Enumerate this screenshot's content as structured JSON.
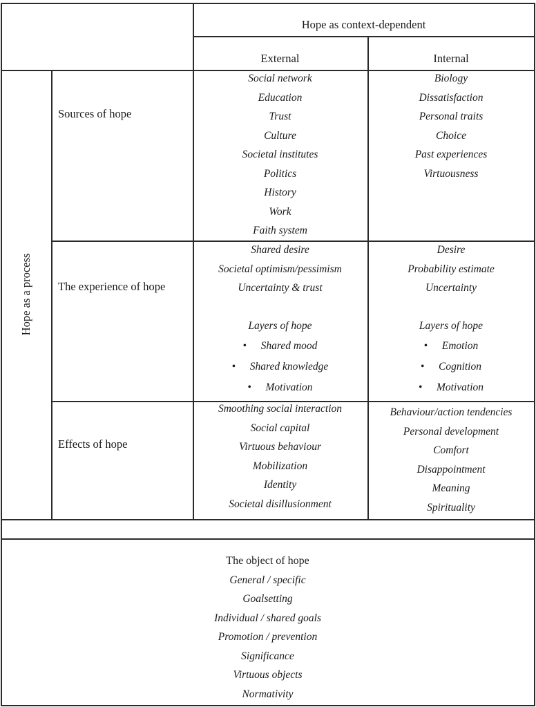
{
  "header": {
    "group_title": "Hope as context-dependent",
    "col_external": "External",
    "col_internal": "Internal",
    "row_group_title": "Hope as a process"
  },
  "rows": {
    "sources": {
      "label": "Sources of hope",
      "external": [
        "Social network",
        "Education",
        "Trust",
        "Culture",
        "Societal institutes",
        "Politics",
        "History",
        "Work",
        "Faith system"
      ],
      "internal": [
        "Biology",
        "Dissatisfaction",
        "Personal traits",
        "Choice",
        "Past experiences",
        "Virtuousness"
      ]
    },
    "experience": {
      "label": "The experience of hope",
      "external": [
        "Shared desire",
        "Societal optimism/pessimism",
        "Uncertainty & trust"
      ],
      "external_layers_title": "Layers of hope",
      "external_layers": [
        "Shared mood",
        "Shared knowledge",
        "Motivation"
      ],
      "internal": [
        "Desire",
        "Probability estimate",
        "Uncertainty"
      ],
      "internal_layers_title": "Layers of hope",
      "internal_layers": [
        "Emotion",
        "Cognition",
        "Motivation"
      ]
    },
    "effects": {
      "label": "Effects of hope",
      "external": [
        "Smoothing social interaction",
        "Social capital",
        "Virtuous behaviour",
        "Mobilization",
        "Identity",
        "Societal disillusionment"
      ],
      "internal": [
        "Behaviour/action tendencies",
        "Personal development",
        "Comfort",
        "Disappointment",
        "Meaning",
        "Spirituality"
      ]
    }
  },
  "object": {
    "title": "The object of hope",
    "items": [
      "General / specific",
      "Goalsetting",
      "Individual / shared goals",
      "Promotion / prevention",
      "Significance",
      "Virtuous objects",
      "Normativity"
    ]
  }
}
